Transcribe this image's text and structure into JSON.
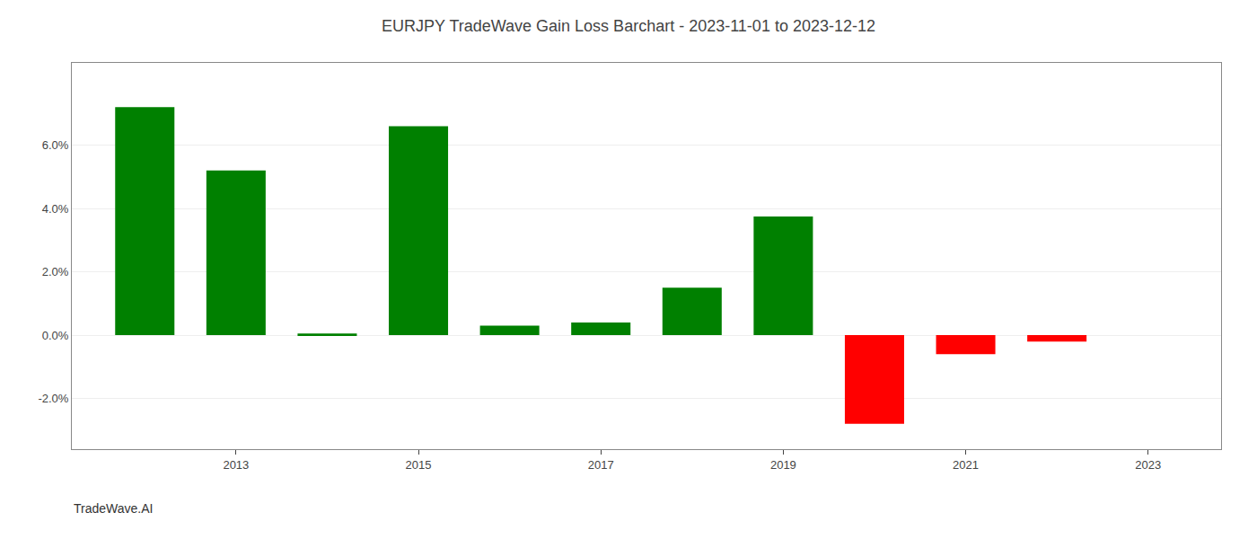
{
  "chart_data": {
    "type": "bar",
    "title": "EURJPY TradeWave Gain Loss Barchart - 2023-11-01 to 2023-12-12",
    "annotations": [
      "TradeWave.AI"
    ],
    "x": [
      2012,
      2013,
      2014,
      2015,
      2016,
      2017,
      2018,
      2019,
      2020,
      2021,
      2022
    ],
    "values": [
      0.072,
      0.052,
      0.0005,
      0.066,
      0.003,
      0.004,
      0.015,
      0.0375,
      -0.028,
      -0.006,
      -0.002
    ],
    "colors": [
      "#008000",
      "#008000",
      "#008000",
      "#008000",
      "#008000",
      "#008000",
      "#008000",
      "#008000",
      "#ff0000",
      "#ff0000",
      "#ff0000"
    ],
    "xlim": [
      2011.2,
      2023.8
    ],
    "xticks": [
      2013,
      2015,
      2017,
      2019,
      2021,
      2023
    ],
    "ylim": [
      -0.036,
      0.086
    ],
    "yticks": [
      {
        "value": -0.02,
        "label": "-2.0%"
      },
      {
        "value": 0.0,
        "label": "0.0%"
      },
      {
        "value": 0.02,
        "label": "2.0%"
      },
      {
        "value": 0.04,
        "label": "4.0%"
      },
      {
        "value": 0.06,
        "label": "6.0%"
      }
    ],
    "grid": true
  }
}
